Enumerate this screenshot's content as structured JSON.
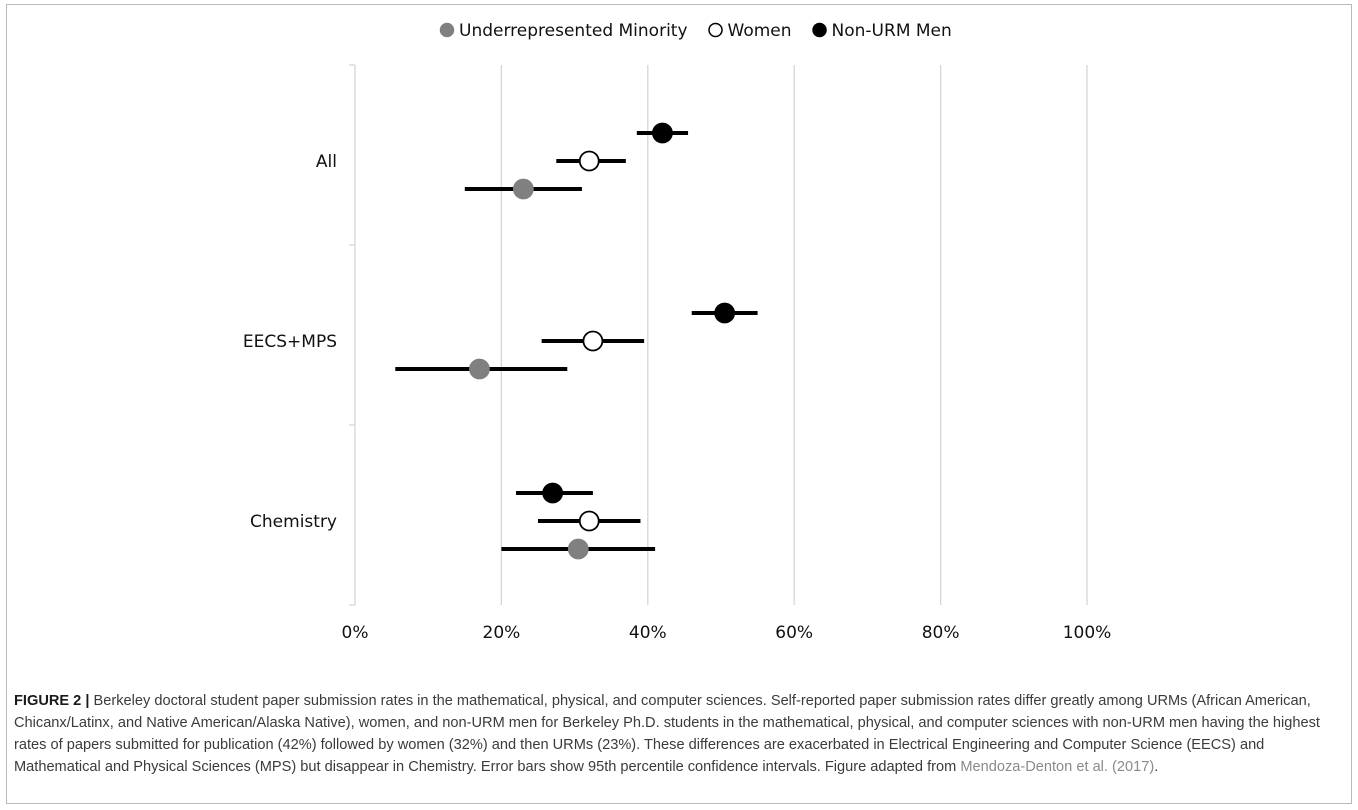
{
  "chart_data": {
    "type": "dot-with-error-bars",
    "xlim": [
      0,
      100
    ],
    "x_ticks": [
      "0%",
      "20%",
      "40%",
      "60%",
      "80%",
      "100%"
    ],
    "grid": true,
    "legend_placement": "top",
    "categories": [
      "All",
      "EECS+MPS",
      "Chemistry"
    ],
    "series": [
      {
        "name": "Underrepresented Minority",
        "marker": "filled",
        "color": "#808080",
        "points": [
          {
            "category": "All",
            "value": 23,
            "lower": 15,
            "upper": 31
          },
          {
            "category": "EECS+MPS",
            "value": 17,
            "lower": 5.5,
            "upper": 29
          },
          {
            "category": "Chemistry",
            "value": 30.5,
            "lower": 20,
            "upper": 41
          }
        ]
      },
      {
        "name": "Women",
        "marker": "hollow",
        "color": "#000000",
        "points": [
          {
            "category": "All",
            "value": 32,
            "lower": 27.5,
            "upper": 37
          },
          {
            "category": "EECS+MPS",
            "value": 32.5,
            "lower": 25.5,
            "upper": 39.5
          },
          {
            "category": "Chemistry",
            "value": 32,
            "lower": 25,
            "upper": 39
          }
        ]
      },
      {
        "name": "Non-URM Men",
        "marker": "filled",
        "color": "#000000",
        "points": [
          {
            "category": "All",
            "value": 42,
            "lower": 38.5,
            "upper": 45.5
          },
          {
            "category": "EECS+MPS",
            "value": 50.5,
            "lower": 46,
            "upper": 55
          },
          {
            "category": "Chemistry",
            "value": 27,
            "lower": 22,
            "upper": 32.5
          }
        ]
      }
    ]
  },
  "caption": {
    "figure_label": "FIGURE 2 |",
    "text": " Berkeley doctoral student paper submission rates in the mathematical, physical, and computer sciences. Self-reported paper submission rates differ greatly among URMs (African American, Chicanx/Latinx, and Native American/Alaska Native), women, and non-URM men for Berkeley Ph.D. students in the mathematical, physical, and computer sciences with non-URM men having the highest rates of papers submitted for publication (42%) followed by women (32%) and then URMs (23%). These differences are exacerbated in Electrical Engineering and Computer Science (EECS) and Mathematical and Physical Sciences (MPS) but disappear in Chemistry. Error bars show 95th percentile confidence intervals. Figure adapted from ",
    "reference": "Mendoza-Denton et al. (2017)",
    "end": "."
  }
}
